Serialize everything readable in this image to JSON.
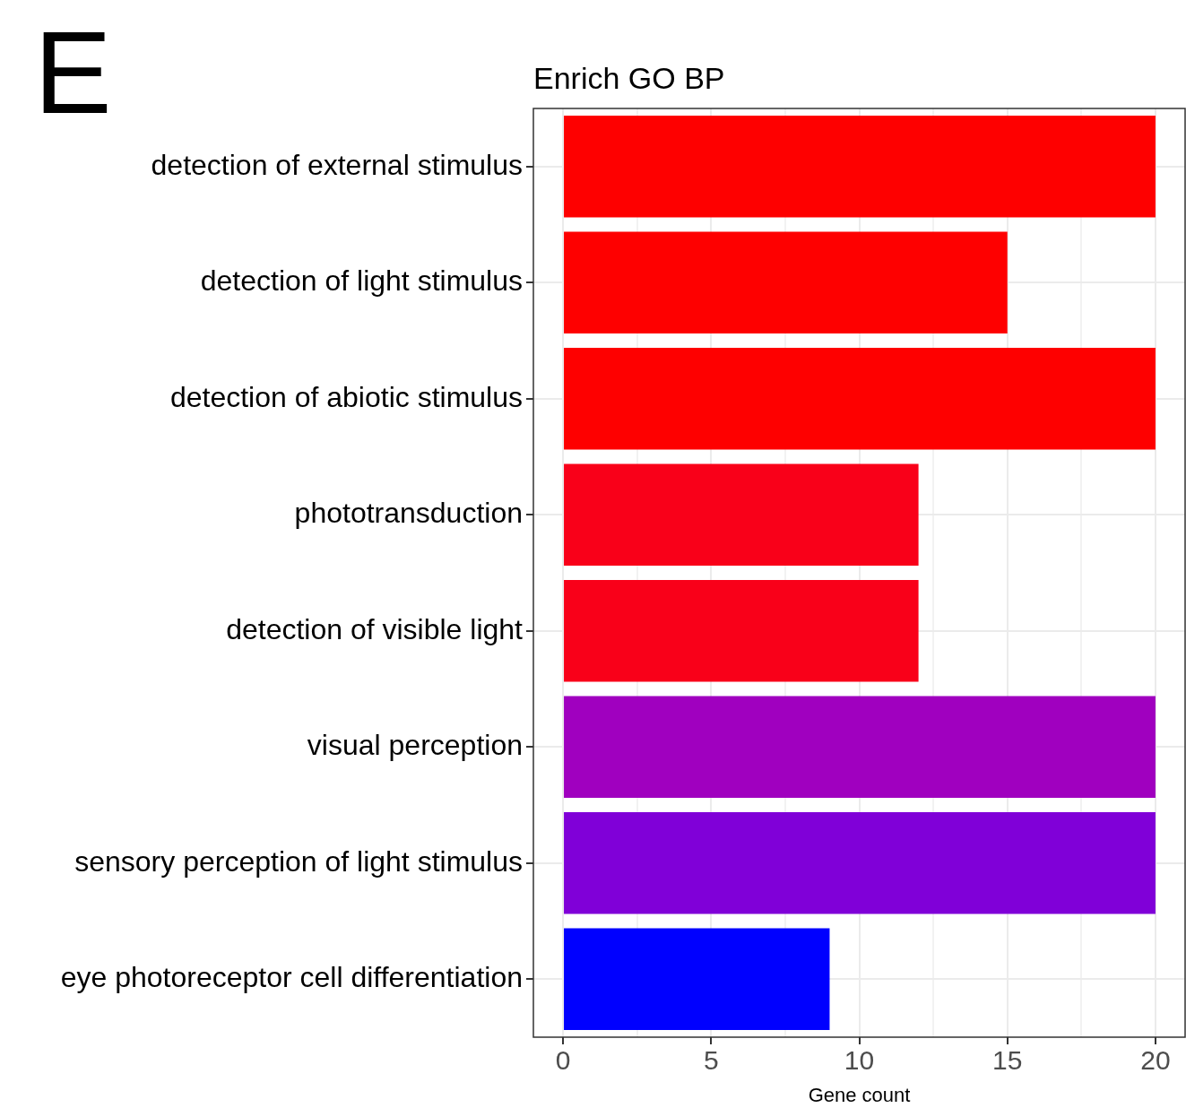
{
  "chart_data": {
    "type": "bar",
    "orientation": "horizontal",
    "title": "Enrich GO BP",
    "xlabel": "Gene count",
    "annotations": [
      "E"
    ],
    "categories": [
      "detection of external stimulus",
      "detection of light stimulus",
      "detection of abiotic stimulus",
      "phototransduction",
      "detection of visible light",
      "visual perception",
      "sensory perception of light stimulus",
      "eye photoreceptor cell differentiation"
    ],
    "values": [
      20,
      15,
      20,
      12,
      12,
      20,
      20,
      9
    ],
    "colors": [
      "#fe0000",
      "#fe0000",
      "#fe0000",
      "#f90019",
      "#f90019",
      "#a000bf",
      "#8000d8",
      "#0000ff"
    ],
    "xlim": [
      -1,
      21
    ],
    "xticks": [
      0,
      {
        "value": 2.5,
        "label": null
      },
      5,
      {
        "value": 7.5,
        "label": null
      },
      10,
      {
        "value": 12.5,
        "label": null
      },
      15,
      {
        "value": 17.5,
        "label": null
      },
      20
    ],
    "grid": true,
    "legend": false
  }
}
